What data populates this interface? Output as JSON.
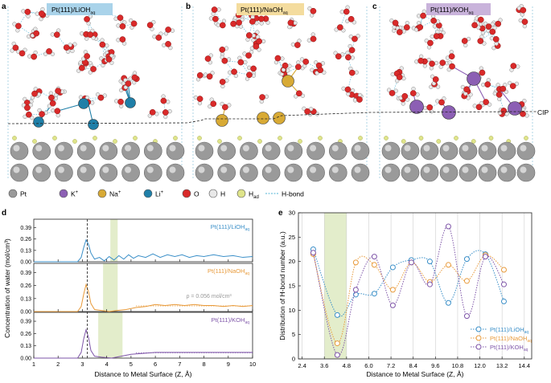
{
  "panels": {
    "a": {
      "letter": "a",
      "label": "Pt(111)/LiOH",
      "sub": "aq",
      "label_bg": "#a9d3ea"
    },
    "b": {
      "letter": "b",
      "label": "Pt(111)/NaOH",
      "sub": "aq",
      "label_bg": "#f4dc9e"
    },
    "c": {
      "letter": "c",
      "label": "Pt(111)/KOH",
      "sub": "aq",
      "label_bg": "#c9b3db"
    }
  },
  "cip_label": "CIP",
  "legend_atoms": [
    {
      "symbol": "Pt",
      "sup": "",
      "sub": "",
      "color": "#9a9a9a",
      "style": "ball"
    },
    {
      "symbol": "K",
      "sup": "+",
      "sub": "",
      "color": "#8c5fb4",
      "style": "ball"
    },
    {
      "symbol": "Na",
      "sup": "+",
      "sub": "",
      "color": "#d8aa35",
      "style": "ball"
    },
    {
      "symbol": "Li",
      "sup": "+",
      "sub": "",
      "color": "#1f7fa8",
      "style": "ball"
    },
    {
      "symbol": "O",
      "sup": "",
      "sub": "",
      "color": "#d92a2a",
      "style": "ball"
    },
    {
      "symbol": "H",
      "sup": "",
      "sub": "",
      "color": "#e8e8e8",
      "style": "ball"
    },
    {
      "symbol": "H",
      "sup": "",
      "sub": "ad",
      "color": "#dfe48a",
      "style": "ball"
    },
    {
      "symbol": "H-bond",
      "sup": "",
      "sub": "",
      "color": "#4fb3d6",
      "style": "dash"
    }
  ],
  "chart_data": [
    {
      "panel": "d",
      "type": "line",
      "ylabel": "Concentration of water (mol/cm³)",
      "xlabel": "Distance to Metal Surface (Z, Å)",
      "xlim": [
        1,
        10
      ],
      "xticks": [
        1,
        2,
        3,
        4,
        5,
        6,
        7,
        8,
        9,
        10
      ],
      "yticks": [
        0.0,
        0.13,
        0.26,
        0.39
      ],
      "yticklabels": [
        "0.00",
        "0.13",
        "0.26",
        "0.39"
      ],
      "ylim": [
        0,
        0.45
      ],
      "vline_x": 3.2,
      "subplots": [
        {
          "name": "Pt(111)/LiOH",
          "sub": "aq",
          "color": "#3a8fc8",
          "band": [
            4.15,
            4.45
          ],
          "x": [
            1.0,
            2.8,
            2.95,
            3.05,
            3.15,
            3.25,
            3.35,
            3.5,
            3.7,
            3.9,
            4.1,
            4.3,
            4.5,
            4.7,
            4.9,
            5.1,
            5.3,
            5.6,
            5.9,
            6.2,
            6.5,
            6.8,
            7.1,
            7.4,
            7.7,
            8.0,
            8.4,
            8.8,
            9.2,
            9.6,
            10.0
          ],
          "y": [
            0.0,
            0.0,
            0.05,
            0.16,
            0.25,
            0.2,
            0.1,
            0.03,
            0.05,
            0.01,
            0.06,
            0.02,
            0.07,
            0.03,
            0.08,
            0.04,
            0.07,
            0.05,
            0.09,
            0.05,
            0.08,
            0.06,
            0.08,
            0.05,
            0.07,
            0.06,
            0.08,
            0.06,
            0.07,
            0.05,
            0.06
          ]
        },
        {
          "name": "Pt(111)/NaOH",
          "sub": "aq",
          "color": "#e89a3a",
          "band": [
            3.85,
            4.45
          ],
          "x": [
            1.0,
            2.8,
            2.95,
            3.05,
            3.15,
            3.25,
            3.35,
            3.5,
            3.8,
            4.1,
            4.4,
            4.8,
            5.2,
            5.6,
            6.0,
            6.4,
            6.8,
            7.2,
            7.6,
            8.0,
            8.4,
            8.8,
            9.2,
            9.6,
            10.0
          ],
          "y": [
            0.0,
            0.0,
            0.05,
            0.17,
            0.27,
            0.2,
            0.08,
            0.02,
            0.01,
            0.0,
            0.01,
            0.02,
            0.04,
            0.05,
            0.07,
            0.06,
            0.07,
            0.06,
            0.07,
            0.06,
            0.06,
            0.05,
            0.06,
            0.05,
            0.06
          ]
        },
        {
          "name": "Pt(111)/KOH",
          "sub": "aq",
          "color": "#7e55a8",
          "band": [
            3.65,
            4.65
          ],
          "x": [
            1.0,
            2.8,
            2.95,
            3.05,
            3.15,
            3.25,
            3.35,
            3.5,
            3.8,
            4.2,
            4.6,
            5.0,
            5.5,
            6.0,
            6.5,
            7.0,
            7.5,
            8.0,
            8.5,
            9.0,
            9.5,
            10.0
          ],
          "y": [
            0.0,
            0.0,
            0.06,
            0.2,
            0.3,
            0.22,
            0.08,
            0.02,
            0.01,
            0.0,
            0.02,
            0.04,
            0.05,
            0.06,
            0.06,
            0.06,
            0.06,
            0.06,
            0.06,
            0.06,
            0.06,
            0.06
          ]
        }
      ],
      "annotation": "ρ = 0.056 mol/cm³",
      "dotted_level": 0.056
    },
    {
      "panel": "e",
      "type": "scatter",
      "ylabel": "Distribution of H-bond number (a.u.)",
      "xlabel": "Distance to Metal Surface (Z, Å)",
      "xlim": [
        2.2,
        14.8
      ],
      "ylim": [
        0,
        30
      ],
      "xticks": [
        2.4,
        3.6,
        4.8,
        6.0,
        7.2,
        8.4,
        9.6,
        10.8,
        12.0,
        13.2,
        14.4
      ],
      "xticklabels": [
        "2.4",
        "3.6",
        "4.8",
        "6.0",
        "7.2",
        "8.4",
        "9.6",
        "10.8",
        "12.0",
        "13.2",
        "14.4"
      ],
      "yticks": [
        0,
        5,
        10,
        15,
        20,
        25,
        30
      ],
      "band": [
        3.6,
        4.8
      ],
      "series": [
        {
          "name": "Pt(111)/LiOH",
          "sub": "aq",
          "color": "#3a8fc8",
          "x": [
            3.0,
            4.3,
            5.3,
            6.3,
            7.3,
            8.3,
            9.3,
            10.3,
            11.3,
            12.3,
            13.3
          ],
          "y": [
            22.5,
            9.0,
            13.2,
            13.4,
            18.8,
            20.3,
            20.0,
            11.5,
            20.5,
            21.5,
            11.8
          ]
        },
        {
          "name": "Pt(111)/NaOH",
          "sub": "aq",
          "color": "#e89a3a",
          "x": [
            3.0,
            4.3,
            5.3,
            6.3,
            7.3,
            8.3,
            9.3,
            10.3,
            11.3,
            12.3,
            13.3
          ],
          "y": [
            21.5,
            3.2,
            19.8,
            19.3,
            14.2,
            19.8,
            15.8,
            19.3,
            16.0,
            21.3,
            18.3
          ]
        },
        {
          "name": "Pt(111)/KOH",
          "sub": "aq",
          "color": "#7e55a8",
          "x": [
            3.0,
            4.3,
            5.3,
            6.3,
            7.3,
            8.3,
            9.3,
            10.3,
            11.3,
            12.3,
            13.3
          ],
          "y": [
            21.8,
            0.8,
            14.2,
            21.0,
            11.0,
            19.8,
            15.3,
            27.2,
            8.8,
            21.0,
            15.3
          ]
        }
      ]
    }
  ]
}
